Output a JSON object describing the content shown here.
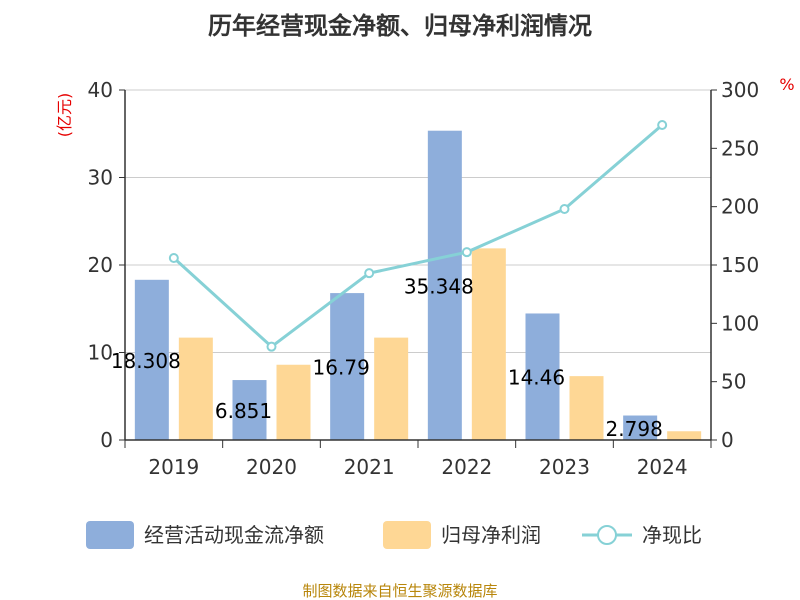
{
  "chart_data": {
    "type": "bar",
    "title": "历年经营现金净额、归母净利润情况",
    "categories": [
      "2019",
      "2020",
      "2021",
      "2022",
      "2023",
      "2024"
    ],
    "y_left": {
      "unit": "(亿元)",
      "ylim": [
        0,
        40
      ],
      "ticks": [
        "0",
        "10",
        "20",
        "30",
        "40"
      ]
    },
    "y_right": {
      "unit": "%",
      "ylim": [
        0,
        300
      ],
      "ticks": [
        "0",
        "50",
        "100",
        "150",
        "200",
        "250",
        "300"
      ]
    },
    "grid": true,
    "legend_position": "bottom",
    "series": [
      {
        "name": "经营活动现金流净额",
        "type": "bar",
        "color": "#8eaedb",
        "values": [
          18.308,
          6.851,
          16.79,
          35.348,
          14.46,
          2.798
        ],
        "data_labels": [
          "18.308",
          "6.851",
          "16.79",
          "35.348",
          "14.46",
          "2.798"
        ]
      },
      {
        "name": "归母净利润",
        "type": "bar",
        "color": "#fed795",
        "values": [
          11.7,
          8.6,
          11.7,
          21.9,
          7.3,
          1.0
        ]
      },
      {
        "name": "净现比",
        "type": "line",
        "axis": "right",
        "color": "#86d1d6",
        "values": [
          156,
          80,
          143,
          161,
          198,
          270
        ]
      }
    ]
  },
  "footer": {
    "source": "制图数据来自恒生聚源数据库"
  }
}
